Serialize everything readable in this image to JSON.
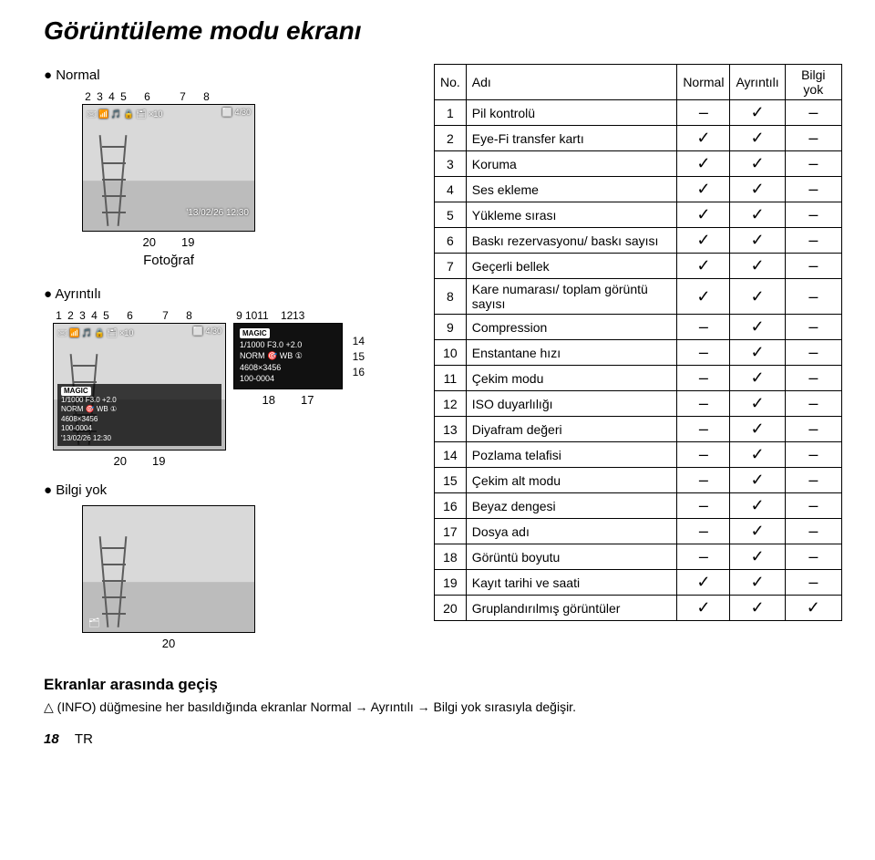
{
  "title": "Görüntüleme modu ekranı",
  "modes": {
    "normal": "● Normal",
    "detailed": "● Ayrıntılı",
    "none": "● Bilgi yok"
  },
  "photo_label": "Fotoğraf",
  "nums_top_a": [
    "2",
    "3",
    "4",
    "5",
    "",
    "6",
    "",
    "",
    "7",
    "",
    "8"
  ],
  "nums_bottom_a": [
    "20",
    "19"
  ],
  "nums_top_b_left": [
    "1",
    "2",
    "3",
    "4",
    "5",
    "",
    "6",
    "",
    "",
    "7",
    "",
    "8"
  ],
  "nums_top_b_right": [
    "9",
    "10",
    "11",
    "",
    "12",
    "13"
  ],
  "nums_side_b": [
    "14",
    "15",
    "16"
  ],
  "nums_bottom_b_left": [
    "20",
    "19"
  ],
  "nums_bottom_b_right": [
    "18",
    "17"
  ],
  "nums_none": "20",
  "preview_strings": {
    "topbar": "🖂 📶 🎵 🔒 🗂 ×10",
    "counter": "⬜ 4/30",
    "datetime": "'13/02/26 12:30",
    "overlay_l1_magic": "MAGIC",
    "overlay_l2": "1/1000  F3.0  +2.0",
    "overlay_l3": "NORM   🎯  WB  ①",
    "overlay_l4": "4608×3456",
    "overlay_l5": "100-0004",
    "overlay_l6": "'13/02/26 12:30",
    "d2_l1": "MAGIC",
    "d2_l2": "1/1000  F3.0  +2.0",
    "d2_l3": "NORM   🎯  WB  ①",
    "d2_l4": "4608×3456",
    "d2_l5": "100-0004"
  },
  "table": {
    "head": [
      "No.",
      "Adı",
      "Normal",
      "Ayrıntılı",
      "Bilgi yok"
    ],
    "rows": [
      {
        "n": "1",
        "name": "Pil kontrolü",
        "v": [
          "–",
          "R",
          "–"
        ]
      },
      {
        "n": "2",
        "name": "Eye-Fi transfer kartı",
        "v": [
          "R",
          "R",
          "–"
        ]
      },
      {
        "n": "3",
        "name": "Koruma",
        "v": [
          "R",
          "R",
          "–"
        ]
      },
      {
        "n": "4",
        "name": "Ses ekleme",
        "v": [
          "R",
          "R",
          "–"
        ]
      },
      {
        "n": "5",
        "name": "Yükleme sırası",
        "v": [
          "R",
          "R",
          "–"
        ]
      },
      {
        "n": "6",
        "name": "Baskı rezervasyonu/ baskı sayısı",
        "v": [
          "R",
          "R",
          "–"
        ]
      },
      {
        "n": "7",
        "name": "Geçerli bellek",
        "v": [
          "R",
          "R",
          "–"
        ]
      },
      {
        "n": "8",
        "name": "Kare numarası/ toplam görüntü sayısı",
        "v": [
          "R",
          "R",
          "–"
        ]
      },
      {
        "n": "9",
        "name": "Compression",
        "v": [
          "–",
          "R",
          "–"
        ]
      },
      {
        "n": "10",
        "name": "Enstantane hızı",
        "v": [
          "–",
          "R",
          "–"
        ]
      },
      {
        "n": "11",
        "name": "Çekim modu",
        "v": [
          "–",
          "R",
          "–"
        ]
      },
      {
        "n": "12",
        "name": "ISO duyarlılığı",
        "v": [
          "–",
          "R",
          "–"
        ]
      },
      {
        "n": "13",
        "name": "Diyafram değeri",
        "v": [
          "–",
          "R",
          "–"
        ]
      },
      {
        "n": "14",
        "name": "Pozlama telafisi",
        "v": [
          "–",
          "R",
          "–"
        ]
      },
      {
        "n": "15",
        "name": "Çekim alt modu",
        "v": [
          "–",
          "R",
          "–"
        ]
      },
      {
        "n": "16",
        "name": "Beyaz dengesi",
        "v": [
          "–",
          "R",
          "–"
        ]
      },
      {
        "n": "17",
        "name": "Dosya adı",
        "v": [
          "–",
          "R",
          "–"
        ]
      },
      {
        "n": "18",
        "name": "Görüntü boyutu",
        "v": [
          "–",
          "R",
          "–"
        ]
      },
      {
        "n": "19",
        "name": "Kayıt tarihi ve saati",
        "v": [
          "R",
          "R",
          "–"
        ]
      },
      {
        "n": "20",
        "name": "Gruplandırılmış görüntüler",
        "v": [
          "R",
          "R",
          "R"
        ]
      }
    ]
  },
  "footer": {
    "heading": "Ekranlar arasında geçiş",
    "body_prefix": "△ (INFO) düğmesine her basıldığında ekranlar Normal → Ayrıntılı → Bilgi yok sırasıyla değişir.",
    "page": "18",
    "lang": "TR"
  }
}
